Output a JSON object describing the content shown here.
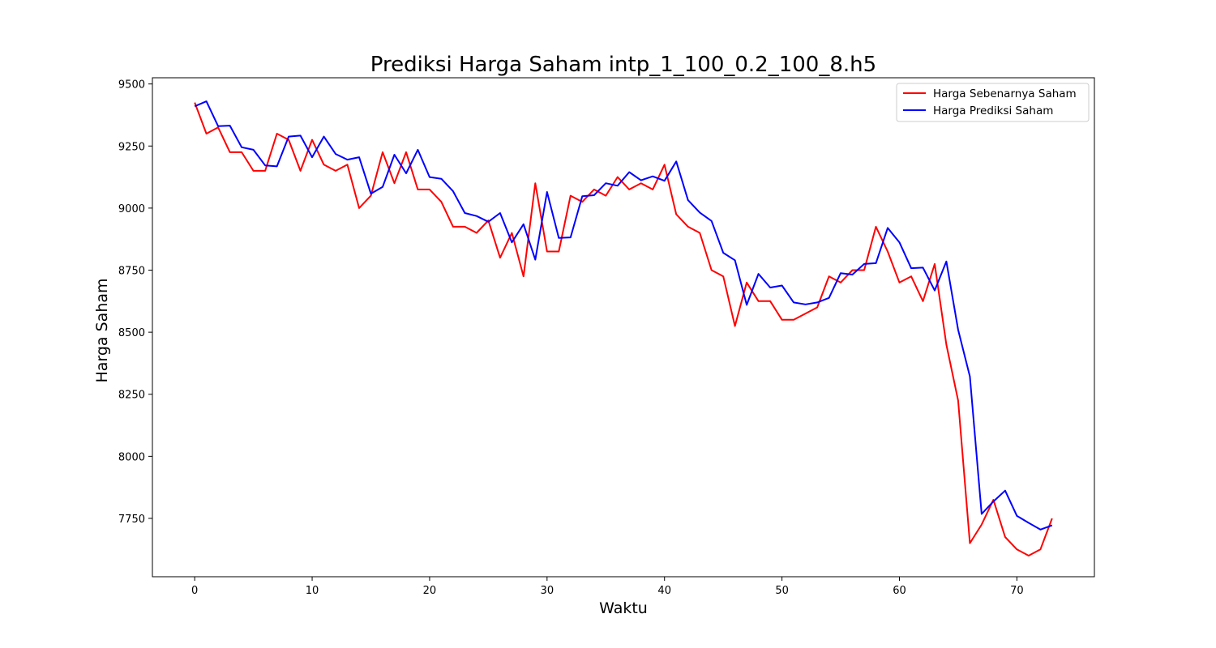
{
  "chart_data": {
    "type": "line",
    "title": "Prediksi Harga Saham intp_1_100_0.2_100_8.h5",
    "xlabel": "Waktu",
    "ylabel": "Harga Saham",
    "xlim": [
      -3.6,
      76.6
    ],
    "ylim": [
      7515,
      9525
    ],
    "x_ticks": [
      0,
      10,
      20,
      30,
      40,
      50,
      60,
      70
    ],
    "y_ticks": [
      7750,
      8000,
      8250,
      8500,
      8750,
      9000,
      9250,
      9500
    ],
    "grid": false,
    "legend_position": "top-right",
    "series": [
      {
        "name": "Harga Sebenarnya Saham",
        "color": "#ff0000",
        "values": [
          9425,
          9300,
          9325,
          9225,
          9225,
          9150,
          9150,
          9300,
          9275,
          9150,
          9275,
          9175,
          9150,
          9175,
          9000,
          9050,
          9225,
          9100,
          9225,
          9075,
          9075,
          9025,
          8925,
          8925,
          8900,
          8950,
          8800,
          8900,
          8725,
          9100,
          8825,
          8825,
          9050,
          9025,
          9075,
          9050,
          9125,
          9075,
          9100,
          9075,
          9175,
          8975,
          8925,
          8900,
          8750,
          8725,
          8525,
          8700,
          8625,
          8625,
          8550,
          8550,
          8575,
          8600,
          8725,
          8700,
          8750,
          8750,
          8925,
          8825,
          8700,
          8725,
          8625,
          8775,
          8450,
          8225,
          7650,
          7725,
          7825,
          7675,
          7625,
          7600,
          7625,
          7750
        ]
      },
      {
        "name": "Harga Prediksi Saham",
        "color": "#0000ff",
        "values": [
          9410,
          9430,
          9330,
          9332,
          9245,
          9235,
          9172,
          9168,
          9288,
          9292,
          9205,
          9288,
          9218,
          9195,
          9205,
          9058,
          9085,
          9215,
          9140,
          9235,
          9125,
          9118,
          9068,
          8980,
          8968,
          8945,
          8980,
          8862,
          8935,
          8792,
          9065,
          8880,
          8882,
          9048,
          9052,
          9100,
          9090,
          9145,
          9112,
          9128,
          9110,
          9188,
          9032,
          8982,
          8948,
          8820,
          8790,
          8610,
          8735,
          8680,
          8688,
          8620,
          8612,
          8620,
          8638,
          8738,
          8732,
          8775,
          8778,
          8920,
          8862,
          8758,
          8760,
          8668,
          8785,
          8510,
          8322,
          7768,
          7818,
          7862,
          7760,
          7732,
          7705,
          7722
        ]
      }
    ]
  }
}
